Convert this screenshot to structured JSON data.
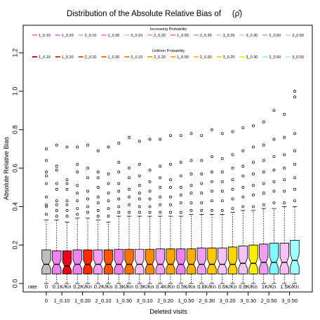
{
  "chart_data": {
    "type": "boxplot",
    "title": "Distribution of the Absolute Relative Bias of",
    "title_symbol": "(ρ̂)",
    "xlabel": "Deleted visits",
    "ylabel": "Absolute Relative Bias",
    "ylim": [
      0,
      1.25
    ],
    "yticks": [
      "0.0",
      "0.2",
      "0.4",
      "0.6",
      "0.8",
      "1.0",
      "1.2"
    ],
    "rate_label": "rate",
    "categories": [
      "0",
      "1_0.10",
      "1_0.20",
      "2_0.10",
      "1_0.30",
      "3_0.10",
      "2_0.20",
      "1_0.50",
      "2_0.30",
      "3_0.20",
      "3_0.30",
      "2_0.50",
      "3_0.50"
    ],
    "rate_values": [
      "0",
      "0.1K/Kn",
      "0.2K/Kn",
      "0.2K/Kn",
      "0.3K/Kn",
      "0.3K/Kn",
      "0.4K/Kn",
      "0.5K/Kn",
      "0.6K/Kn",
      "0.6K/Kn",
      "0.9K/Kn",
      "1K/Kn",
      "1.5K/Kn"
    ],
    "legends": [
      {
        "title": "Increasing Probability",
        "placement": "top",
        "entries": [
          {
            "label": "1_0.10",
            "color": "#ee82ee"
          },
          {
            "label": "1_0.20",
            "color": "#ee82ee"
          },
          {
            "label": "2_0.10",
            "color": "#f0a0f0"
          },
          {
            "label": "1_0.30",
            "color": "#ee82ee"
          },
          {
            "label": "3_0.10",
            "color": "#f4c2f4"
          },
          {
            "label": "2_0.20",
            "color": "#f0a0f0"
          },
          {
            "label": "1_0.50",
            "color": "#ee82ee"
          },
          {
            "label": "2_0.30",
            "color": "#f0a0f0"
          },
          {
            "label": "3_0.20",
            "color": "#f4c2f4"
          },
          {
            "label": "3_0.30",
            "color": "#f4c2f4"
          },
          {
            "label": "2_0.50",
            "color": "#f0a0f0"
          },
          {
            "label": "3_0.50",
            "color": "#f4c2f4"
          }
        ]
      },
      {
        "title": "Uniform Probability",
        "placement": "top",
        "entries": [
          {
            "label": "1_0.10",
            "color": "#e8001c"
          },
          {
            "label": "1_0.20",
            "color": "#ff2a00"
          },
          {
            "label": "2_0.10",
            "color": "#ff5500"
          },
          {
            "label": "1_0.30",
            "color": "#ff7000"
          },
          {
            "label": "3_0.10",
            "color": "#ff8c00"
          },
          {
            "label": "2_0.20",
            "color": "#ffa500"
          },
          {
            "label": "1_0.50",
            "color": "#ffb300"
          },
          {
            "label": "2_0.30",
            "color": "#ffc800"
          },
          {
            "label": "3_0.20",
            "color": "#ffd700"
          },
          {
            "label": "3_0.30",
            "color": "#ffee00"
          },
          {
            "label": "2_0.50",
            "color": "#7fffff"
          },
          {
            "label": "3_0.50",
            "color": "#a0ffff"
          }
        ]
      }
    ],
    "boxes": [
      {
        "x": "0",
        "color": "#bebebe",
        "q1": 0.05,
        "median": 0.1,
        "q3": 0.175,
        "wlow": 0.0,
        "whigh": 0.33,
        "outliers": [
          0.36,
          0.4,
          0.41,
          0.45,
          0.52,
          0.56,
          0.58,
          0.64,
          0.7
        ]
      },
      {
        "x": "1_0.10",
        "color": "#ee82ee",
        "q1": 0.05,
        "median": 0.1,
        "q3": 0.17,
        "wlow": 0.0,
        "whigh": 0.33,
        "outliers": [
          0.35,
          0.38,
          0.41,
          0.43,
          0.49,
          0.52,
          0.59,
          0.61,
          0.72
        ]
      },
      {
        "x": "1_0.10",
        "color": "#e8001c",
        "q1": 0.05,
        "median": 0.09,
        "q3": 0.17,
        "wlow": 0.0,
        "whigh": 0.32,
        "outliers": [
          0.35,
          0.38,
          0.41,
          0.43,
          0.49,
          0.52,
          0.54,
          0.71
        ]
      },
      {
        "x": "1_0.20",
        "color": "#ee82ee",
        "q1": 0.05,
        "median": 0.1,
        "q3": 0.175,
        "wlow": 0.0,
        "whigh": 0.34,
        "outliers": [
          0.36,
          0.39,
          0.43,
          0.47,
          0.51,
          0.58,
          0.62,
          0.71
        ]
      },
      {
        "x": "1_0.20",
        "color": "#ff2a00",
        "q1": 0.05,
        "median": 0.1,
        "q3": 0.175,
        "wlow": 0.0,
        "whigh": 0.34,
        "outliers": [
          0.37,
          0.4,
          0.44,
          0.48,
          0.55,
          0.6,
          0.72
        ]
      },
      {
        "x": "2_0.10",
        "color": "#f0a0f0",
        "q1": 0.05,
        "median": 0.1,
        "q3": 0.175,
        "wlow": 0.0,
        "whigh": 0.33,
        "outliers": [
          0.35,
          0.38,
          0.42,
          0.45,
          0.5,
          0.55,
          0.58,
          0.69
        ]
      },
      {
        "x": "2_0.10",
        "color": "#ff5500",
        "q1": 0.05,
        "median": 0.1,
        "q3": 0.175,
        "wlow": 0.0,
        "whigh": 0.32,
        "outliers": [
          0.35,
          0.39,
          0.43,
          0.47,
          0.52,
          0.57,
          0.71
        ]
      },
      {
        "x": "1_0.30",
        "color": "#ee82ee",
        "q1": 0.05,
        "median": 0.1,
        "q3": 0.178,
        "wlow": 0.0,
        "whigh": 0.35,
        "outliers": [
          0.37,
          0.4,
          0.44,
          0.48,
          0.52,
          0.58,
          0.63,
          0.73
        ]
      },
      {
        "x": "1_0.30",
        "color": "#ff7000",
        "q1": 0.05,
        "median": 0.1,
        "q3": 0.178,
        "wlow": 0.0,
        "whigh": 0.35,
        "outliers": [
          0.37,
          0.41,
          0.45,
          0.49,
          0.55,
          0.6,
          0.76
        ]
      },
      {
        "x": "3_0.10",
        "color": "#f4c2f4",
        "q1": 0.05,
        "median": 0.1,
        "q3": 0.178,
        "wlow": 0.0,
        "whigh": 0.35,
        "outliers": [
          0.37,
          0.4,
          0.44,
          0.47,
          0.51,
          0.56,
          0.62,
          0.74
        ]
      },
      {
        "x": "3_0.10",
        "color": "#ff8c00",
        "q1": 0.05,
        "median": 0.1,
        "q3": 0.178,
        "wlow": 0.0,
        "whigh": 0.35,
        "outliers": [
          0.37,
          0.4,
          0.44,
          0.48,
          0.53,
          0.59,
          0.75
        ]
      },
      {
        "x": "2_0.20",
        "color": "#f0a0f0",
        "q1": 0.05,
        "median": 0.1,
        "q3": 0.18,
        "wlow": 0.0,
        "whigh": 0.35,
        "outliers": [
          0.37,
          0.41,
          0.45,
          0.5,
          0.55,
          0.61,
          0.75
        ]
      },
      {
        "x": "2_0.20",
        "color": "#ffa500",
        "q1": 0.05,
        "median": 0.1,
        "q3": 0.18,
        "wlow": 0.0,
        "whigh": 0.35,
        "outliers": [
          0.37,
          0.41,
          0.45,
          0.5,
          0.54,
          0.62,
          0.77
        ]
      },
      {
        "x": "1_0.50",
        "color": "#ee82ee",
        "q1": 0.05,
        "median": 0.1,
        "q3": 0.18,
        "wlow": 0.0,
        "whigh": 0.35,
        "outliers": [
          0.37,
          0.42,
          0.46,
          0.5,
          0.56,
          0.63,
          0.77
        ]
      },
      {
        "x": "1_0.50",
        "color": "#ffb300",
        "q1": 0.05,
        "median": 0.1,
        "q3": 0.18,
        "wlow": 0.0,
        "whigh": 0.36,
        "outliers": [
          0.38,
          0.42,
          0.47,
          0.51,
          0.57,
          0.64,
          0.78
        ]
      },
      {
        "x": "2_0.30",
        "color": "#f0a0f0",
        "q1": 0.05,
        "median": 0.1,
        "q3": 0.185,
        "wlow": 0.0,
        "whigh": 0.36,
        "outliers": [
          0.38,
          0.42,
          0.47,
          0.52,
          0.57,
          0.64,
          0.77
        ]
      },
      {
        "x": "2_0.30",
        "color": "#ffc800",
        "q1": 0.05,
        "median": 0.1,
        "q3": 0.185,
        "wlow": 0.0,
        "whigh": 0.36,
        "outliers": [
          0.38,
          0.43,
          0.48,
          0.53,
          0.58,
          0.66,
          0.8
        ]
      },
      {
        "x": "3_0.20",
        "color": "#f4c2f4",
        "q1": 0.05,
        "median": 0.1,
        "q3": 0.185,
        "wlow": 0.0,
        "whigh": 0.36,
        "outliers": [
          0.38,
          0.43,
          0.48,
          0.53,
          0.58,
          0.65,
          0.78
        ]
      },
      {
        "x": "3_0.20",
        "color": "#ffd700",
        "q1": 0.05,
        "median": 0.1,
        "q3": 0.19,
        "wlow": 0.0,
        "whigh": 0.37,
        "outliers": [
          0.39,
          0.44,
          0.49,
          0.54,
          0.6,
          0.67,
          0.79
        ]
      },
      {
        "x": "3_0.30",
        "color": "#f4c2f4",
        "q1": 0.05,
        "median": 0.105,
        "q3": 0.195,
        "wlow": 0.0,
        "whigh": 0.38,
        "outliers": [
          0.4,
          0.45,
          0.5,
          0.56,
          0.61,
          0.69,
          0.81
        ]
      },
      {
        "x": "3_0.30",
        "color": "#ffee00",
        "q1": 0.05,
        "median": 0.105,
        "q3": 0.2,
        "wlow": 0.0,
        "whigh": 0.38,
        "outliers": [
          0.4,
          0.46,
          0.51,
          0.57,
          0.63,
          0.71,
          0.82
        ]
      },
      {
        "x": "2_0.50",
        "color": "#f0a0f0",
        "q1": 0.05,
        "median": 0.11,
        "q3": 0.205,
        "wlow": 0.0,
        "whigh": 0.39,
        "outliers": [
          0.41,
          0.47,
          0.52,
          0.58,
          0.64,
          0.72,
          0.84
        ]
      },
      {
        "x": "2_0.50",
        "color": "#7fffff",
        "q1": 0.05,
        "median": 0.11,
        "q3": 0.21,
        "wlow": 0.0,
        "whigh": 0.39,
        "outliers": [
          0.42,
          0.48,
          0.53,
          0.59,
          0.66,
          0.75,
          0.9
        ]
      },
      {
        "x": "3_0.50",
        "color": "#f4c2f4",
        "q1": 0.05,
        "median": 0.11,
        "q3": 0.21,
        "wlow": 0.0,
        "whigh": 0.4,
        "outliers": [
          0.42,
          0.48,
          0.54,
          0.6,
          0.67,
          0.76,
          0.88
        ]
      },
      {
        "x": "3_0.50",
        "color": "#a0ffff",
        "q1": 0.05,
        "median": 0.12,
        "q3": 0.225,
        "wlow": 0.0,
        "whigh": 0.4,
        "outliers": [
          0.43,
          0.49,
          0.55,
          0.62,
          0.69,
          0.78,
          0.97,
          1.0
        ]
      }
    ],
    "grid": false
  }
}
